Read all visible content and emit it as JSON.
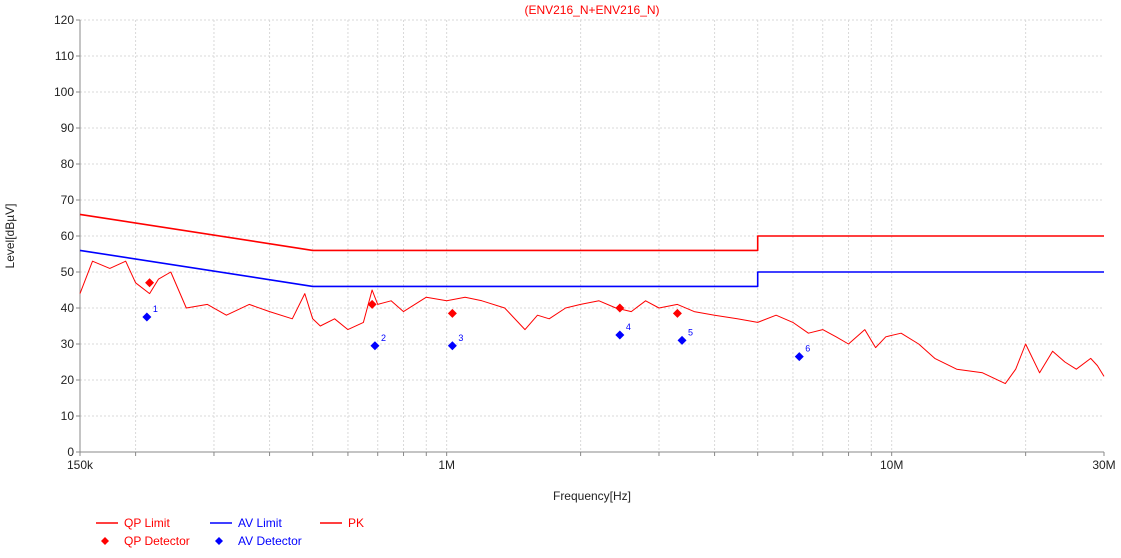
{
  "chart_data": {
    "type": "line",
    "title": "(ENV216_N+ENV216_N)",
    "xlabel": "Frequency[Hz]",
    "ylabel": "Level[dBµV]",
    "xscale": "log",
    "xlim": [
      150000,
      30000000
    ],
    "ylim": [
      0,
      120
    ],
    "yticks": [
      0,
      10,
      20,
      30,
      40,
      50,
      60,
      70,
      80,
      90,
      100,
      110,
      120
    ],
    "xticks": [
      {
        "value": 150000,
        "label": "150k"
      },
      {
        "value": 1000000,
        "label": "1M"
      },
      {
        "value": 10000000,
        "label": "10M"
      },
      {
        "value": 30000000,
        "label": "30M"
      }
    ],
    "grid": true,
    "colors": {
      "qp": "#ff0000",
      "av": "#0000ff",
      "pk": "#ff0000",
      "grid": "#d9d9d9",
      "axis": "#888888"
    },
    "series": [
      {
        "name": "QP Limit",
        "color": "#ff0000",
        "x": [
          150000,
          500000,
          500000,
          5000000,
          5000000,
          30000000
        ],
        "y": [
          66,
          56,
          56,
          56,
          60,
          60
        ]
      },
      {
        "name": "AV Limit",
        "color": "#0000ff",
        "x": [
          150000,
          500000,
          500000,
          5000000,
          5000000,
          30000000
        ],
        "y": [
          56,
          46,
          46,
          46,
          50,
          50
        ]
      },
      {
        "name": "PK",
        "color": "#ff0000",
        "x": [
          150000,
          160000,
          175000,
          190000,
          200000,
          215000,
          225000,
          240000,
          260000,
          290000,
          320000,
          360000,
          400000,
          450000,
          480000,
          500000,
          520000,
          560000,
          600000,
          650000,
          680000,
          700000,
          750000,
          800000,
          900000,
          1000000,
          1100000,
          1200000,
          1350000,
          1500000,
          1600000,
          1700000,
          1850000,
          2000000,
          2200000,
          2400000,
          2600000,
          2800000,
          3000000,
          3300000,
          3600000,
          4000000,
          4500000,
          5000000,
          5500000,
          6000000,
          6500000,
          7000000,
          7500000,
          8000000,
          8700000,
          9200000,
          9700000,
          10500000,
          11500000,
          12500000,
          14000000,
          16000000,
          18000000,
          19000000,
          20000000,
          21500000,
          23000000,
          24500000,
          26000000,
          28000000,
          29000000,
          30000000
        ],
        "y": [
          44,
          53,
          51,
          53,
          47,
          44,
          48,
          50,
          40,
          41,
          38,
          41,
          39,
          37,
          44,
          37,
          35,
          37,
          34,
          36,
          45,
          41,
          42,
          39,
          43,
          42,
          43,
          42,
          40,
          34,
          38,
          37,
          40,
          41,
          42,
          40,
          39,
          42,
          40,
          41,
          39,
          38,
          37,
          36,
          38,
          36,
          33,
          34,
          32,
          30,
          34,
          29,
          32,
          33,
          30,
          26,
          23,
          22,
          19,
          23,
          30,
          22,
          28,
          25,
          23,
          26,
          24,
          21
        ]
      },
      {
        "name": "QP Detector",
        "color": "#ff0000",
        "marker": "diamond",
        "x": [
          215000,
          680000,
          1030000,
          2450000,
          3300000
        ],
        "y": [
          47,
          41,
          38.5,
          40,
          38.5
        ]
      },
      {
        "name": "AV Detector",
        "color": "#0000ff",
        "marker": "diamond",
        "x": [
          212000,
          690000,
          1030000,
          2450000,
          3380000,
          6200000
        ],
        "y": [
          37.5,
          29.5,
          29.5,
          32.5,
          31,
          26.5
        ],
        "labels": [
          "1",
          "2",
          "3",
          "4",
          "5",
          "6"
        ]
      }
    ],
    "legend": [
      {
        "name": "QP Limit",
        "kind": "line",
        "color": "#ff0000"
      },
      {
        "name": "AV Limit",
        "kind": "line",
        "color": "#0000ff"
      },
      {
        "name": "PK",
        "kind": "line",
        "color": "#ff0000"
      },
      {
        "name": "QP Detector",
        "kind": "diamond",
        "color": "#ff0000"
      },
      {
        "name": "AV Detector",
        "kind": "diamond",
        "color": "#0000ff"
      }
    ],
    "legend_position": "bottom-left"
  }
}
